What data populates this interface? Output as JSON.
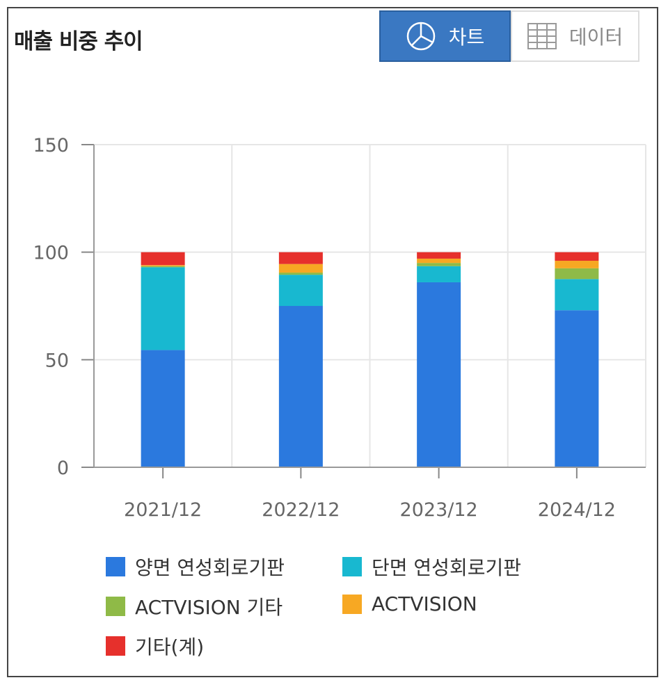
{
  "title": "매출 비중 추이",
  "toggle": {
    "chart_label": "차트",
    "data_label": "데이터"
  },
  "icons": {
    "chart": "pie-chart-icon",
    "data": "table-grid-icon"
  },
  "chart_data": {
    "type": "bar",
    "stacked": true,
    "categories": [
      "2021/12",
      "2022/12",
      "2023/12",
      "2024/12"
    ],
    "ylim": [
      0,
      150
    ],
    "yticks": [
      0,
      50,
      100,
      150
    ],
    "grid": true,
    "legend_position": "bottom",
    "series": [
      {
        "name": "양면 연성회로기판",
        "color": "#2b79de",
        "values": [
          54.5,
          75,
          86,
          73
        ]
      },
      {
        "name": "단면 연성회로기판",
        "color": "#18b8d0",
        "values": [
          38.5,
          14.5,
          7.5,
          14.5
        ]
      },
      {
        "name": "ACTVISION 기타",
        "color": "#8fba47",
        "values": [
          0.5,
          1,
          1.5,
          5
        ]
      },
      {
        "name": "ACTVISION",
        "color": "#f7a823",
        "values": [
          0.5,
          4,
          2,
          3.5
        ]
      },
      {
        "name": "기타(계)",
        "color": "#e6302c",
        "values": [
          6,
          5.5,
          3,
          4
        ]
      }
    ]
  }
}
